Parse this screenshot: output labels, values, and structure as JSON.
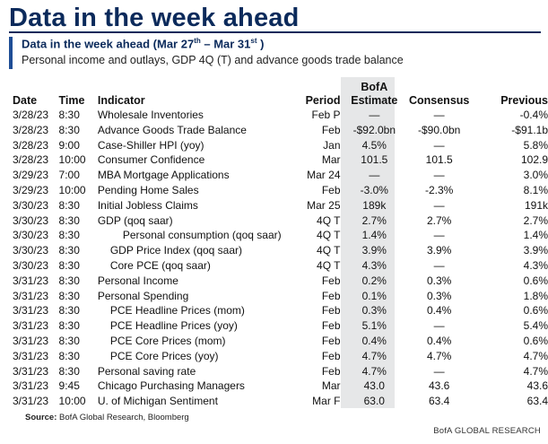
{
  "header": {
    "title": "Data in the week ahead"
  },
  "subheader": {
    "title_main": "Data in the week ahead (Mar 27",
    "title_sup1": "th",
    "title_mid": " – Mar 31",
    "title_sup2": "st",
    "title_end": " )",
    "description": "Personal income and outlays, GDP 4Q (T) and advance goods trade balance"
  },
  "table": {
    "columns": {
      "date": "Date",
      "time": "Time",
      "indicator": "Indicator",
      "period": "Period",
      "estimate_line1": "BofA",
      "estimate_line2": "Estimate",
      "consensus": "Consensus",
      "previous": "Previous"
    },
    "rows": [
      {
        "date": "3/28/23",
        "time": "8:30",
        "indicator": "Wholesale Inventories",
        "indent": 0,
        "period": "Feb P",
        "estimate": "—",
        "consensus": "—",
        "previous": "-0.4%"
      },
      {
        "date": "3/28/23",
        "time": "8:30",
        "indicator": "Advance Goods Trade Balance",
        "indent": 0,
        "period": "Feb",
        "estimate": "-$92.0bn",
        "consensus": "-$90.0bn",
        "previous": "-$91.1b"
      },
      {
        "date": "3/28/23",
        "time": "9:00",
        "indicator": "Case-Shiller HPI (yoy)",
        "indent": 0,
        "period": "Jan",
        "estimate": "4.5%",
        "consensus": "—",
        "previous": "5.8%"
      },
      {
        "date": "3/28/23",
        "time": "10:00",
        "indicator": "Consumer Confidence",
        "indent": 0,
        "period": "Mar",
        "estimate": "101.5",
        "consensus": "101.5",
        "previous": "102.9"
      },
      {
        "date": "3/29/23",
        "time": "7:00",
        "indicator": "MBA Mortgage Applications",
        "indent": 0,
        "period": "Mar 24",
        "estimate": "—",
        "consensus": "—",
        "previous": "3.0%"
      },
      {
        "date": "3/29/23",
        "time": "10:00",
        "indicator": "Pending Home Sales",
        "indent": 0,
        "period": "Feb",
        "estimate": "-3.0%",
        "consensus": "-2.3%",
        "previous": "8.1%"
      },
      {
        "date": "3/30/23",
        "time": "8:30",
        "indicator": "Initial Jobless Claims",
        "indent": 0,
        "period": "Mar 25",
        "estimate": "189k",
        "consensus": "—",
        "previous": "191k"
      },
      {
        "date": "3/30/23",
        "time": "8:30",
        "indicator": "GDP (qoq saar)",
        "indent": 0,
        "period": "4Q T",
        "estimate": "2.7%",
        "consensus": "2.7%",
        "previous": "2.7%"
      },
      {
        "date": "3/30/23",
        "time": "8:30",
        "indicator": "Personal consumption (qoq saar)",
        "indent": 2,
        "period": "4Q T",
        "estimate": "1.4%",
        "consensus": "—",
        "previous": "1.4%"
      },
      {
        "date": "3/30/23",
        "time": "8:30",
        "indicator": "GDP Price Index (qoq saar)",
        "indent": 1,
        "period": "4Q T",
        "estimate": "3.9%",
        "consensus": "3.9%",
        "previous": "3.9%"
      },
      {
        "date": "3/30/23",
        "time": "8:30",
        "indicator": "Core PCE (qoq saar)",
        "indent": 1,
        "period": "4Q T",
        "estimate": "4.3%",
        "consensus": "—",
        "previous": "4.3%"
      },
      {
        "date": "3/31/23",
        "time": "8:30",
        "indicator": "Personal Income",
        "indent": 0,
        "period": "Feb",
        "estimate": "0.2%",
        "consensus": "0.3%",
        "previous": "0.6%"
      },
      {
        "date": "3/31/23",
        "time": "8:30",
        "indicator": "Personal Spending",
        "indent": 0,
        "period": "Feb",
        "estimate": "0.1%",
        "consensus": "0.3%",
        "previous": "1.8%"
      },
      {
        "date": "3/31/23",
        "time": "8:30",
        "indicator": "PCE Headline Prices (mom)",
        "indent": 1,
        "period": "Feb",
        "estimate": "0.3%",
        "consensus": "0.4%",
        "previous": "0.6%"
      },
      {
        "date": "3/31/23",
        "time": "8:30",
        "indicator": "PCE Headline Prices (yoy)",
        "indent": 1,
        "period": "Feb",
        "estimate": "5.1%",
        "consensus": "—",
        "previous": "5.4%"
      },
      {
        "date": "3/31/23",
        "time": "8:30",
        "indicator": "PCE Core Prices (mom)",
        "indent": 1,
        "period": "Feb",
        "estimate": "0.4%",
        "consensus": "0.4%",
        "previous": "0.6%"
      },
      {
        "date": "3/31/23",
        "time": "8:30",
        "indicator": "PCE Core Prices (yoy)",
        "indent": 1,
        "period": "Feb",
        "estimate": "4.7%",
        "consensus": "4.7%",
        "previous": "4.7%"
      },
      {
        "date": "3/31/23",
        "time": "8:30",
        "indicator": "Personal saving rate",
        "indent": 0,
        "period": "Feb",
        "estimate": "4.7%",
        "consensus": "—",
        "previous": "4.7%"
      },
      {
        "date": "3/31/23",
        "time": "9:45",
        "indicator": "Chicago Purchasing Managers",
        "indent": 0,
        "period": "Mar",
        "estimate": "43.0",
        "consensus": "43.6",
        "previous": "43.6"
      },
      {
        "date": "3/31/23",
        "time": "10:00",
        "indicator": "U. of Michigan Sentiment",
        "indent": 0,
        "period": "Mar F",
        "estimate": "63.0",
        "consensus": "63.4",
        "previous": "63.4"
      }
    ]
  },
  "footer": {
    "source_label": "Source:",
    "source_text": " BofA Global Research, Bloomberg",
    "brand": "BofA GLOBAL RESEARCH"
  },
  "colors": {
    "title": "#0b2a5b",
    "accent_bar": "#1f4e96",
    "estimate_shade": "#e6e7e8"
  }
}
